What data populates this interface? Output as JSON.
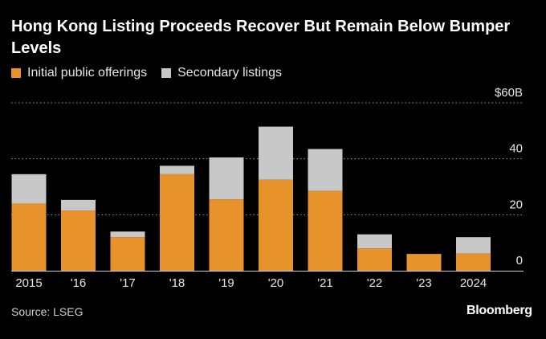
{
  "title": "Hong Kong Listing Proceeds Recover But Remain Below Bumper Levels",
  "legend": {
    "ipo": "Initial public offerings",
    "secondary": "Secondary listings"
  },
  "colors": {
    "ipo": "#e8922c",
    "secondary": "#c8c8c8",
    "background": "#000000",
    "grid": "#9a9a9a"
  },
  "source": "Source: LSEG",
  "brand": "Bloomberg",
  "chart_data": {
    "type": "bar",
    "stacked": true,
    "title": "Hong Kong Listing Proceeds Recover But Remain Below Bumper Levels",
    "categories": [
      "2015",
      "'16",
      "'17",
      "'18",
      "'19",
      "'20",
      "'21",
      "'22",
      "'23",
      "2024"
    ],
    "series": [
      {
        "name": "Initial public offerings",
        "values": [
          24,
          21.5,
          12,
          34.5,
          25.5,
          32.5,
          28.5,
          8,
          6,
          6.2
        ]
      },
      {
        "name": "Secondary listings",
        "values": [
          10.5,
          3.8,
          2,
          3,
          15,
          19,
          15,
          5,
          0,
          5.8
        ]
      }
    ],
    "ylim": [
      0,
      60
    ],
    "yticks": [
      0,
      20,
      40,
      60
    ],
    "ytick_labels": [
      "0",
      "20",
      "40",
      "$60B"
    ],
    "y_axis_side": "right",
    "grid": "dotted horizontal",
    "legend_position": "top-left"
  }
}
